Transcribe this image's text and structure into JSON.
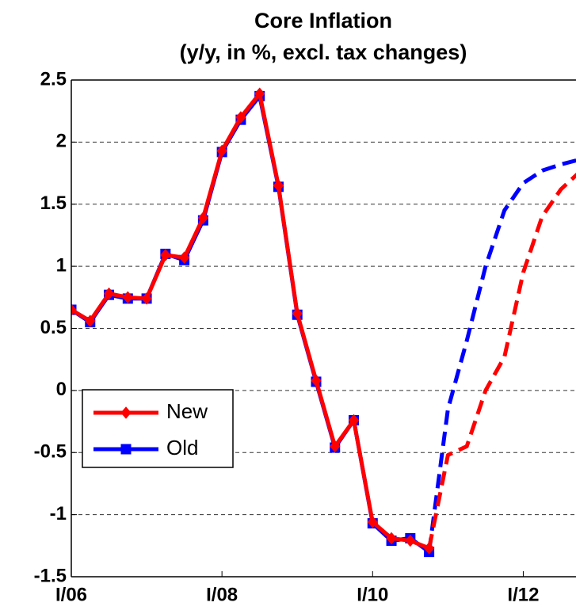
{
  "chart_data": {
    "type": "line",
    "title": "Core Inflation",
    "subtitle": "(y/y, in %, excl. tax changes)",
    "x": [
      0,
      1,
      2,
      3,
      4,
      5,
      6,
      7,
      8,
      9,
      10,
      11,
      12,
      13,
      14,
      15,
      16,
      17,
      18,
      19,
      20,
      21,
      22,
      23,
      24,
      25,
      26,
      27
    ],
    "xlim": [
      0,
      26.8
    ],
    "xticks": [
      {
        "value": 0,
        "label": "I/06"
      },
      {
        "value": 8,
        "label": "I/08"
      },
      {
        "value": 16,
        "label": "I/10"
      },
      {
        "value": 24,
        "label": "I/12"
      }
    ],
    "ylim": [
      -1.5,
      2.5
    ],
    "yticks": [
      2.5,
      2,
      1.5,
      1,
      0.5,
      0,
      -0.5,
      -1,
      -1.5
    ],
    "grid": true,
    "legend": "lower left",
    "series": [
      {
        "name": "Old",
        "color": "#0000ff",
        "marker": "square",
        "values": [
          0.65,
          0.55,
          0.77,
          0.74,
          0.74,
          1.1,
          1.05,
          1.37,
          1.92,
          2.18,
          2.37,
          1.64,
          0.61,
          0.07,
          -0.46,
          -0.24,
          -1.07,
          -1.21,
          -1.19,
          -1.3,
          null,
          null,
          null,
          null,
          null,
          null,
          null,
          null
        ]
      },
      {
        "name": "New",
        "color": "#ff0000",
        "marker": "diamond",
        "values": [
          0.65,
          0.56,
          0.78,
          0.75,
          0.74,
          1.09,
          1.07,
          1.39,
          1.93,
          2.2,
          2.39,
          1.65,
          0.62,
          0.08,
          -0.45,
          -0.24,
          -1.06,
          -1.19,
          -1.21,
          -1.27,
          null,
          null,
          null,
          null,
          null,
          null,
          null,
          null
        ]
      }
    ],
    "forecasts": [
      {
        "color": "#0000ff",
        "line_style": "dashed",
        "values": [
          null,
          null,
          null,
          null,
          null,
          null,
          null,
          null,
          null,
          null,
          null,
          null,
          null,
          null,
          null,
          null,
          null,
          null,
          null,
          -1.3,
          -0.15,
          0.4,
          1.0,
          1.45,
          1.67,
          1.77,
          1.82,
          1.86
        ]
      },
      {
        "color": "#ff0000",
        "line_style": "dashed",
        "values": [
          null,
          null,
          null,
          null,
          null,
          null,
          null,
          null,
          null,
          null,
          null,
          null,
          null,
          null,
          null,
          null,
          null,
          null,
          null,
          -1.27,
          -0.52,
          -0.45,
          0.0,
          0.27,
          0.95,
          1.4,
          1.62,
          1.76
        ]
      }
    ]
  }
}
